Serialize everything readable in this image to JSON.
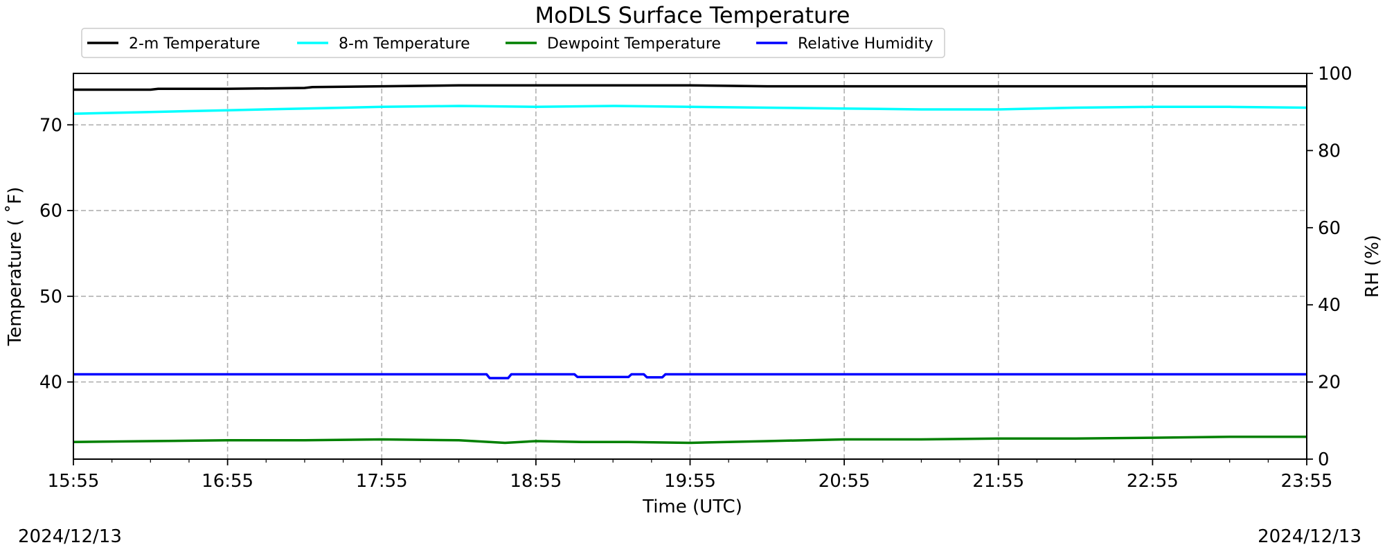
{
  "dates": {
    "left": "2024/12/13",
    "right": "2024/12/13"
  },
  "chart_data": {
    "type": "line",
    "title": "MoDLS Surface Temperature",
    "xlabel": "Time (UTC)",
    "ylabel": "Temperature ($^\\circ$F)",
    "ylabel_display": "Temperature ( ˚F)",
    "y2label": "RH (%)",
    "x_tick_labels": [
      "15:55",
      "16:55",
      "17:55",
      "18:55",
      "19:55",
      "20:55",
      "21:55",
      "22:55",
      "23:55"
    ],
    "x_range_hours": [
      0,
      8
    ],
    "ylim": [
      31,
      76
    ],
    "y_ticks": [
      40,
      50,
      60,
      70
    ],
    "y2lim": [
      0,
      100
    ],
    "y2_ticks": [
      0,
      20,
      40,
      60,
      80,
      100
    ],
    "grid": true,
    "legend_position": "top-left",
    "series": [
      {
        "name": "2-m Temperature",
        "axis": "left",
        "color": "#000000",
        "x": [
          0,
          0.5,
          0.55,
          1.0,
          1.5,
          1.55,
          2.0,
          2.5,
          3.0,
          3.5,
          4.0,
          4.5,
          5.0,
          6.0,
          7.0,
          8.0
        ],
        "values": [
          74.1,
          74.1,
          74.2,
          74.2,
          74.3,
          74.4,
          74.5,
          74.6,
          74.6,
          74.6,
          74.6,
          74.5,
          74.5,
          74.5,
          74.5,
          74.5
        ]
      },
      {
        "name": "8-m Temperature",
        "axis": "left",
        "color": "#00ffff",
        "x": [
          0,
          0.5,
          1.0,
          1.5,
          2.0,
          2.5,
          3.0,
          3.5,
          4.0,
          4.5,
          5.0,
          5.5,
          6.0,
          6.5,
          7.0,
          7.5,
          8.0
        ],
        "values": [
          71.3,
          71.5,
          71.7,
          71.9,
          72.1,
          72.2,
          72.1,
          72.2,
          72.1,
          72.0,
          71.9,
          71.8,
          71.8,
          72.0,
          72.1,
          72.1,
          72.0
        ]
      },
      {
        "name": "Dewpoint Temperature",
        "axis": "left",
        "color": "#008000",
        "x": [
          0,
          0.5,
          1.0,
          1.5,
          2.0,
          2.5,
          2.8,
          3.0,
          3.3,
          3.6,
          4.0,
          4.5,
          5.0,
          5.5,
          6.0,
          6.5,
          7.0,
          7.5,
          8.0
        ],
        "values": [
          33.0,
          33.1,
          33.2,
          33.2,
          33.3,
          33.2,
          32.9,
          33.1,
          33.0,
          33.0,
          32.9,
          33.1,
          33.3,
          33.3,
          33.4,
          33.4,
          33.5,
          33.6,
          33.6
        ]
      },
      {
        "name": "Relative Humidity",
        "axis": "right",
        "color": "#0000ff",
        "x": [
          0,
          2.68,
          2.7,
          2.82,
          2.84,
          3.25,
          3.27,
          3.6,
          3.62,
          3.7,
          3.72,
          3.82,
          3.84,
          4.0,
          8.0
        ],
        "values": [
          22,
          22,
          21,
          21,
          22,
          22,
          21.3,
          21.3,
          22,
          22,
          21.2,
          21.2,
          22,
          22,
          22
        ]
      }
    ]
  }
}
